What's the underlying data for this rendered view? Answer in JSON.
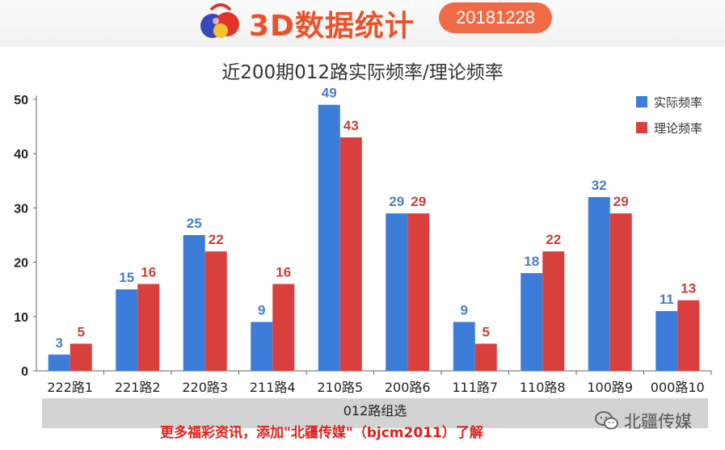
{
  "header": {
    "brand_title": "3D数据统计",
    "date": "20181228"
  },
  "chart_data": {
    "type": "bar",
    "title": "近200期012路实际频率/理论频率",
    "xlabel": "012路组选",
    "ylabel": "",
    "ylim": [
      0,
      50
    ],
    "yticks": [
      0,
      10,
      20,
      30,
      40,
      50
    ],
    "categories": [
      "222路1",
      "221路2",
      "220路3",
      "211路4",
      "210路5",
      "200路6",
      "111路7",
      "110路8",
      "100路9",
      "000路10"
    ],
    "series": [
      {
        "name": "实际频率",
        "color": "#3b7dd8",
        "label_color": "#4a7fc1",
        "values": [
          3,
          15,
          25,
          9,
          49,
          29,
          9,
          18,
          32,
          11
        ]
      },
      {
        "name": "理论频率",
        "color": "#d9403d",
        "label_color": "#c8413a",
        "values": [
          5,
          16,
          22,
          16,
          43,
          29,
          5,
          22,
          29,
          13
        ]
      }
    ],
    "grid": false,
    "legend_position": "top-right"
  },
  "footer": {
    "note": "更多福彩资讯，添加\"北疆传媒\"（bjcm2011）了解",
    "wechat_label": "北疆传媒"
  }
}
